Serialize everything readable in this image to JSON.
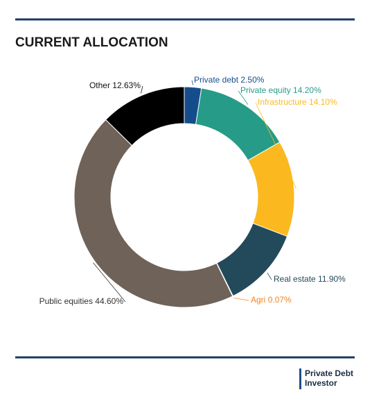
{
  "chart_data": {
    "type": "pie",
    "title": "CURRENT ALLOCATION",
    "categories": [
      "Private debt",
      "Private equity",
      "Infrastructure",
      "Real estate",
      "Agri",
      "Public equities",
      "Other"
    ],
    "values": [
      2.5,
      14.2,
      14.1,
      11.9,
      0.07,
      44.6,
      12.63
    ],
    "value_labels": [
      "2.50%",
      "14.20%",
      "14.10%",
      "11.90%",
      "0.07%",
      "44.60%",
      "12.63%"
    ],
    "colors": [
      "#154d8c",
      "#269b88",
      "#fbb91f",
      "#234a5a",
      "#f5821f",
      "#6e6259",
      "#000000"
    ],
    "hole": true
  },
  "logo": [
    "Private Debt",
    "Investor"
  ]
}
